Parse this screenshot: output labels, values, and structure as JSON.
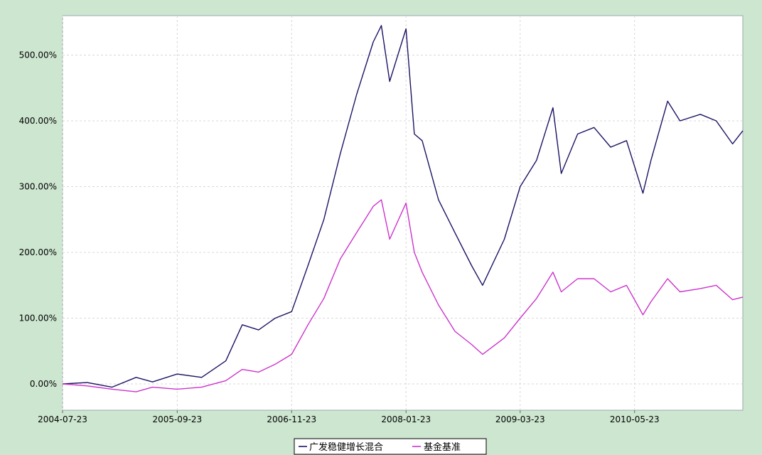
{
  "chart_data": {
    "type": "line",
    "title": "",
    "xlabel": "",
    "ylabel": "",
    "y_tick_labels": [
      "0.00%",
      "100.00%",
      "200.00%",
      "300.00%",
      "400.00%",
      "500.00%"
    ],
    "y_ticks": [
      0,
      100,
      200,
      300,
      400,
      500
    ],
    "x_tick_labels": [
      "2004-07-23",
      "2005-09-23",
      "2006-11-23",
      "2008-01-23",
      "2009-03-23",
      "2010-05-23"
    ],
    "ylim": [
      -40,
      560
    ],
    "xlim": [
      "2004-07-23",
      "2011-06-30"
    ],
    "grid": true,
    "legend_position": "bottom-center",
    "series": [
      {
        "name": "广发稳健增长混合",
        "color": "#1b1464",
        "x": [
          "2004-07-23",
          "2004-10-23",
          "2005-01-23",
          "2005-04-23",
          "2005-06-23",
          "2005-09-23",
          "2005-12-23",
          "2006-03-23",
          "2006-05-23",
          "2006-07-23",
          "2006-09-23",
          "2006-11-23",
          "2007-01-23",
          "2007-03-23",
          "2007-05-23",
          "2007-07-23",
          "2007-09-23",
          "2007-10-23",
          "2007-11-23",
          "2008-01-23",
          "2008-02-23",
          "2008-03-23",
          "2008-05-23",
          "2008-07-23",
          "2008-09-23",
          "2008-11-03",
          "2009-01-23",
          "2009-03-23",
          "2009-05-23",
          "2009-07-23",
          "2009-08-23",
          "2009-10-23",
          "2009-12-23",
          "2010-02-23",
          "2010-04-23",
          "2010-06-23",
          "2010-07-23",
          "2010-09-23",
          "2010-11-08",
          "2011-01-23",
          "2011-03-23",
          "2011-05-23",
          "2011-06-30"
        ],
        "values": [
          0,
          2,
          -5,
          10,
          3,
          15,
          10,
          35,
          90,
          82,
          100,
          110,
          180,
          250,
          350,
          440,
          520,
          545,
          460,
          540,
          380,
          370,
          280,
          230,
          180,
          150,
          220,
          300,
          340,
          420,
          320,
          380,
          390,
          360,
          370,
          290,
          340,
          430,
          400,
          410,
          400,
          365,
          385
        ]
      },
      {
        "name": "基金基准",
        "color": "#cc33cc",
        "x": [
          "2004-07-23",
          "2004-10-23",
          "2005-01-23",
          "2005-04-23",
          "2005-06-23",
          "2005-09-23",
          "2005-12-23",
          "2006-03-23",
          "2006-05-23",
          "2006-07-23",
          "2006-09-23",
          "2006-11-23",
          "2007-01-23",
          "2007-03-23",
          "2007-05-23",
          "2007-07-23",
          "2007-09-23",
          "2007-10-23",
          "2007-11-23",
          "2008-01-23",
          "2008-02-23",
          "2008-03-23",
          "2008-05-23",
          "2008-07-23",
          "2008-09-23",
          "2008-11-03",
          "2009-01-23",
          "2009-03-23",
          "2009-05-23",
          "2009-07-23",
          "2009-08-23",
          "2009-10-23",
          "2009-12-23",
          "2010-02-23",
          "2010-04-23",
          "2010-06-23",
          "2010-07-23",
          "2010-09-23",
          "2010-11-08",
          "2011-01-23",
          "2011-03-23",
          "2011-05-23",
          "2011-06-30"
        ],
        "values": [
          0,
          -3,
          -8,
          -12,
          -5,
          -8,
          -5,
          5,
          22,
          18,
          30,
          45,
          90,
          130,
          190,
          230,
          270,
          280,
          220,
          275,
          200,
          170,
          120,
          80,
          60,
          45,
          70,
          100,
          130,
          170,
          140,
          160,
          160,
          140,
          150,
          105,
          125,
          160,
          140,
          145,
          150,
          128,
          132
        ]
      }
    ]
  }
}
